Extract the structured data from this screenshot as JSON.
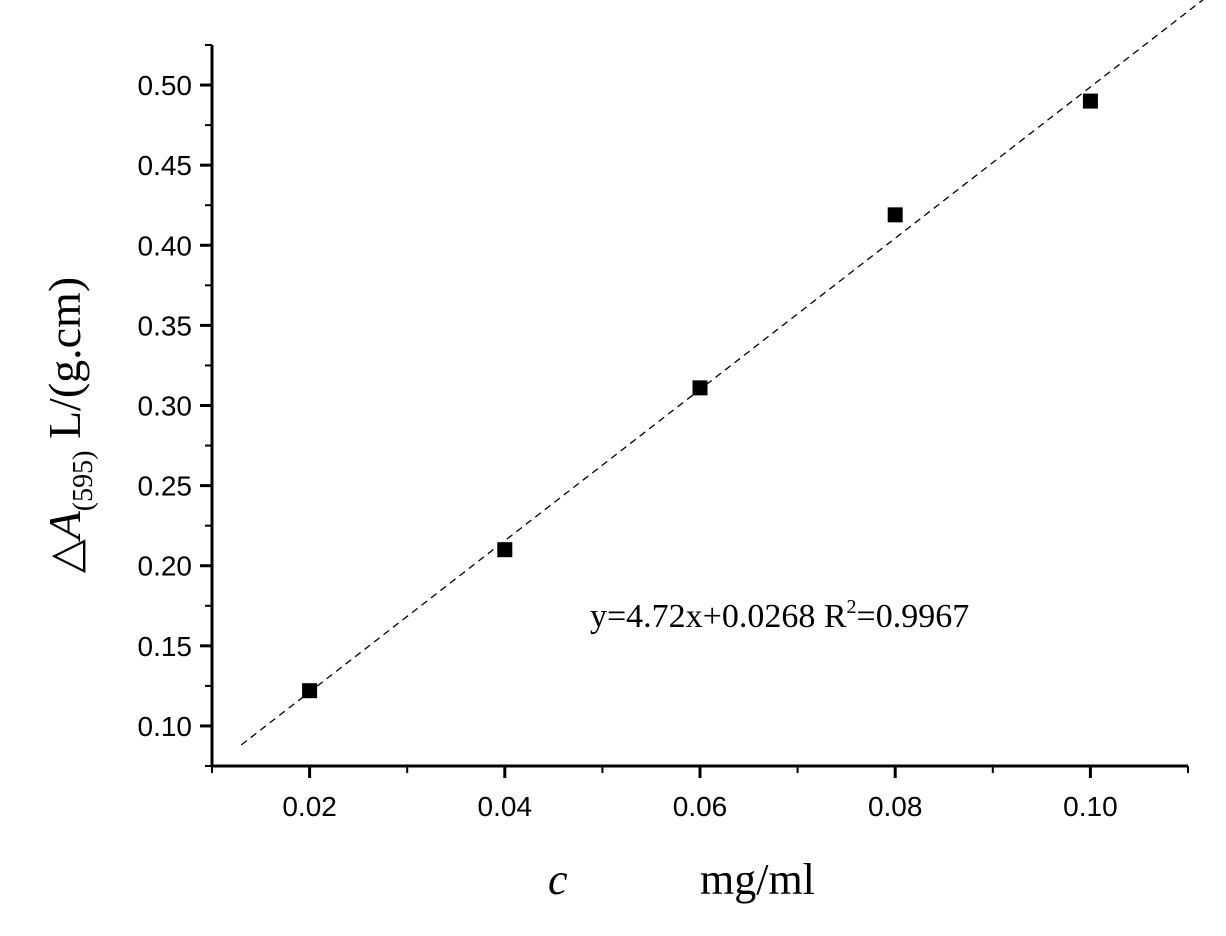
{
  "chart_data": {
    "type": "scatter",
    "x": [
      0.02,
      0.04,
      0.06,
      0.08,
      0.1
    ],
    "y": [
      0.122,
      0.21,
      0.311,
      0.419,
      0.49
    ],
    "xlim": [
      0.01,
      0.11
    ],
    "ylim": [
      0.075,
      0.525
    ],
    "x_ticks": [
      "0.02",
      "0.04",
      "0.06",
      "0.08",
      "0.10"
    ],
    "y_ticks": [
      "0.10",
      "0.15",
      "0.20",
      "0.25",
      "0.30",
      "0.35",
      "0.40",
      "0.45",
      "0.50"
    ],
    "xlabel_var": "c",
    "xlabel_unit": "mg/ml",
    "ylabel_symbol": "△",
    "ylabel_var": "A",
    "ylabel_sub": "(595)",
    "ylabel_unit": "L/(g.cm)",
    "fit": {
      "slope": 4.72,
      "intercept": 0.0268,
      "x_range": [
        0.013,
        0.1125
      ]
    },
    "annotation": "y=4.72x+0.0268 R",
    "annotation_sup": "2",
    "annotation_tail": "=0.9967",
    "grid": false,
    "legend": "none",
    "marker": "square",
    "fit_style": "dashed"
  }
}
